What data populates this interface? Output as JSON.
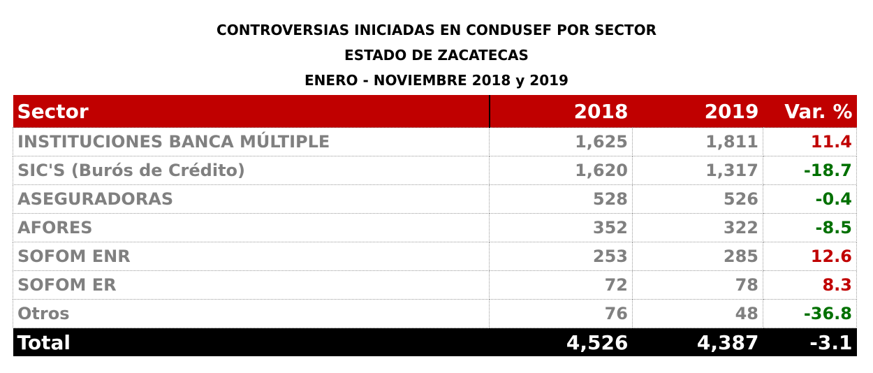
{
  "title": {
    "line1": "CONTROVERSIAS INICIADAS EN CONDUSEF POR SECTOR",
    "line2": "ESTADO DE ZACATECAS",
    "line3": "ENERO - NOVIEMBRE 2018 y 2019"
  },
  "colors": {
    "header": "#c00000",
    "positive": "#c00000",
    "negative": "#007000",
    "total": "#000000"
  },
  "table": {
    "headers": [
      "Sector",
      "2018",
      "2019",
      "Var. %"
    ],
    "rows": [
      {
        "sector": "INSTITUCIONES BANCA MÚLTIPLE",
        "y2018": "1,625",
        "y2019": "1,811",
        "var": "11.4"
      },
      {
        "sector": "SIC'S (Burós de Crédito)",
        "y2018": "1,620",
        "y2019": "1,317",
        "var": "-18.7"
      },
      {
        "sector": "ASEGURADORAS",
        "y2018": "528",
        "y2019": "526",
        "var": "-0.4"
      },
      {
        "sector": "AFORES",
        "y2018": "352",
        "y2019": "322",
        "var": "-8.5"
      },
      {
        "sector": "SOFOM ENR",
        "y2018": "253",
        "y2019": "285",
        "var": "12.6"
      },
      {
        "sector": "SOFOM ER",
        "y2018": "72",
        "y2019": "78",
        "var": "8.3"
      },
      {
        "sector": "Otros",
        "y2018": "76",
        "y2019": "48",
        "var": "-36.8"
      }
    ],
    "total": {
      "sector": "Total",
      "y2018": "4,526",
      "y2019": "4,387",
      "var": "-3.1"
    }
  }
}
